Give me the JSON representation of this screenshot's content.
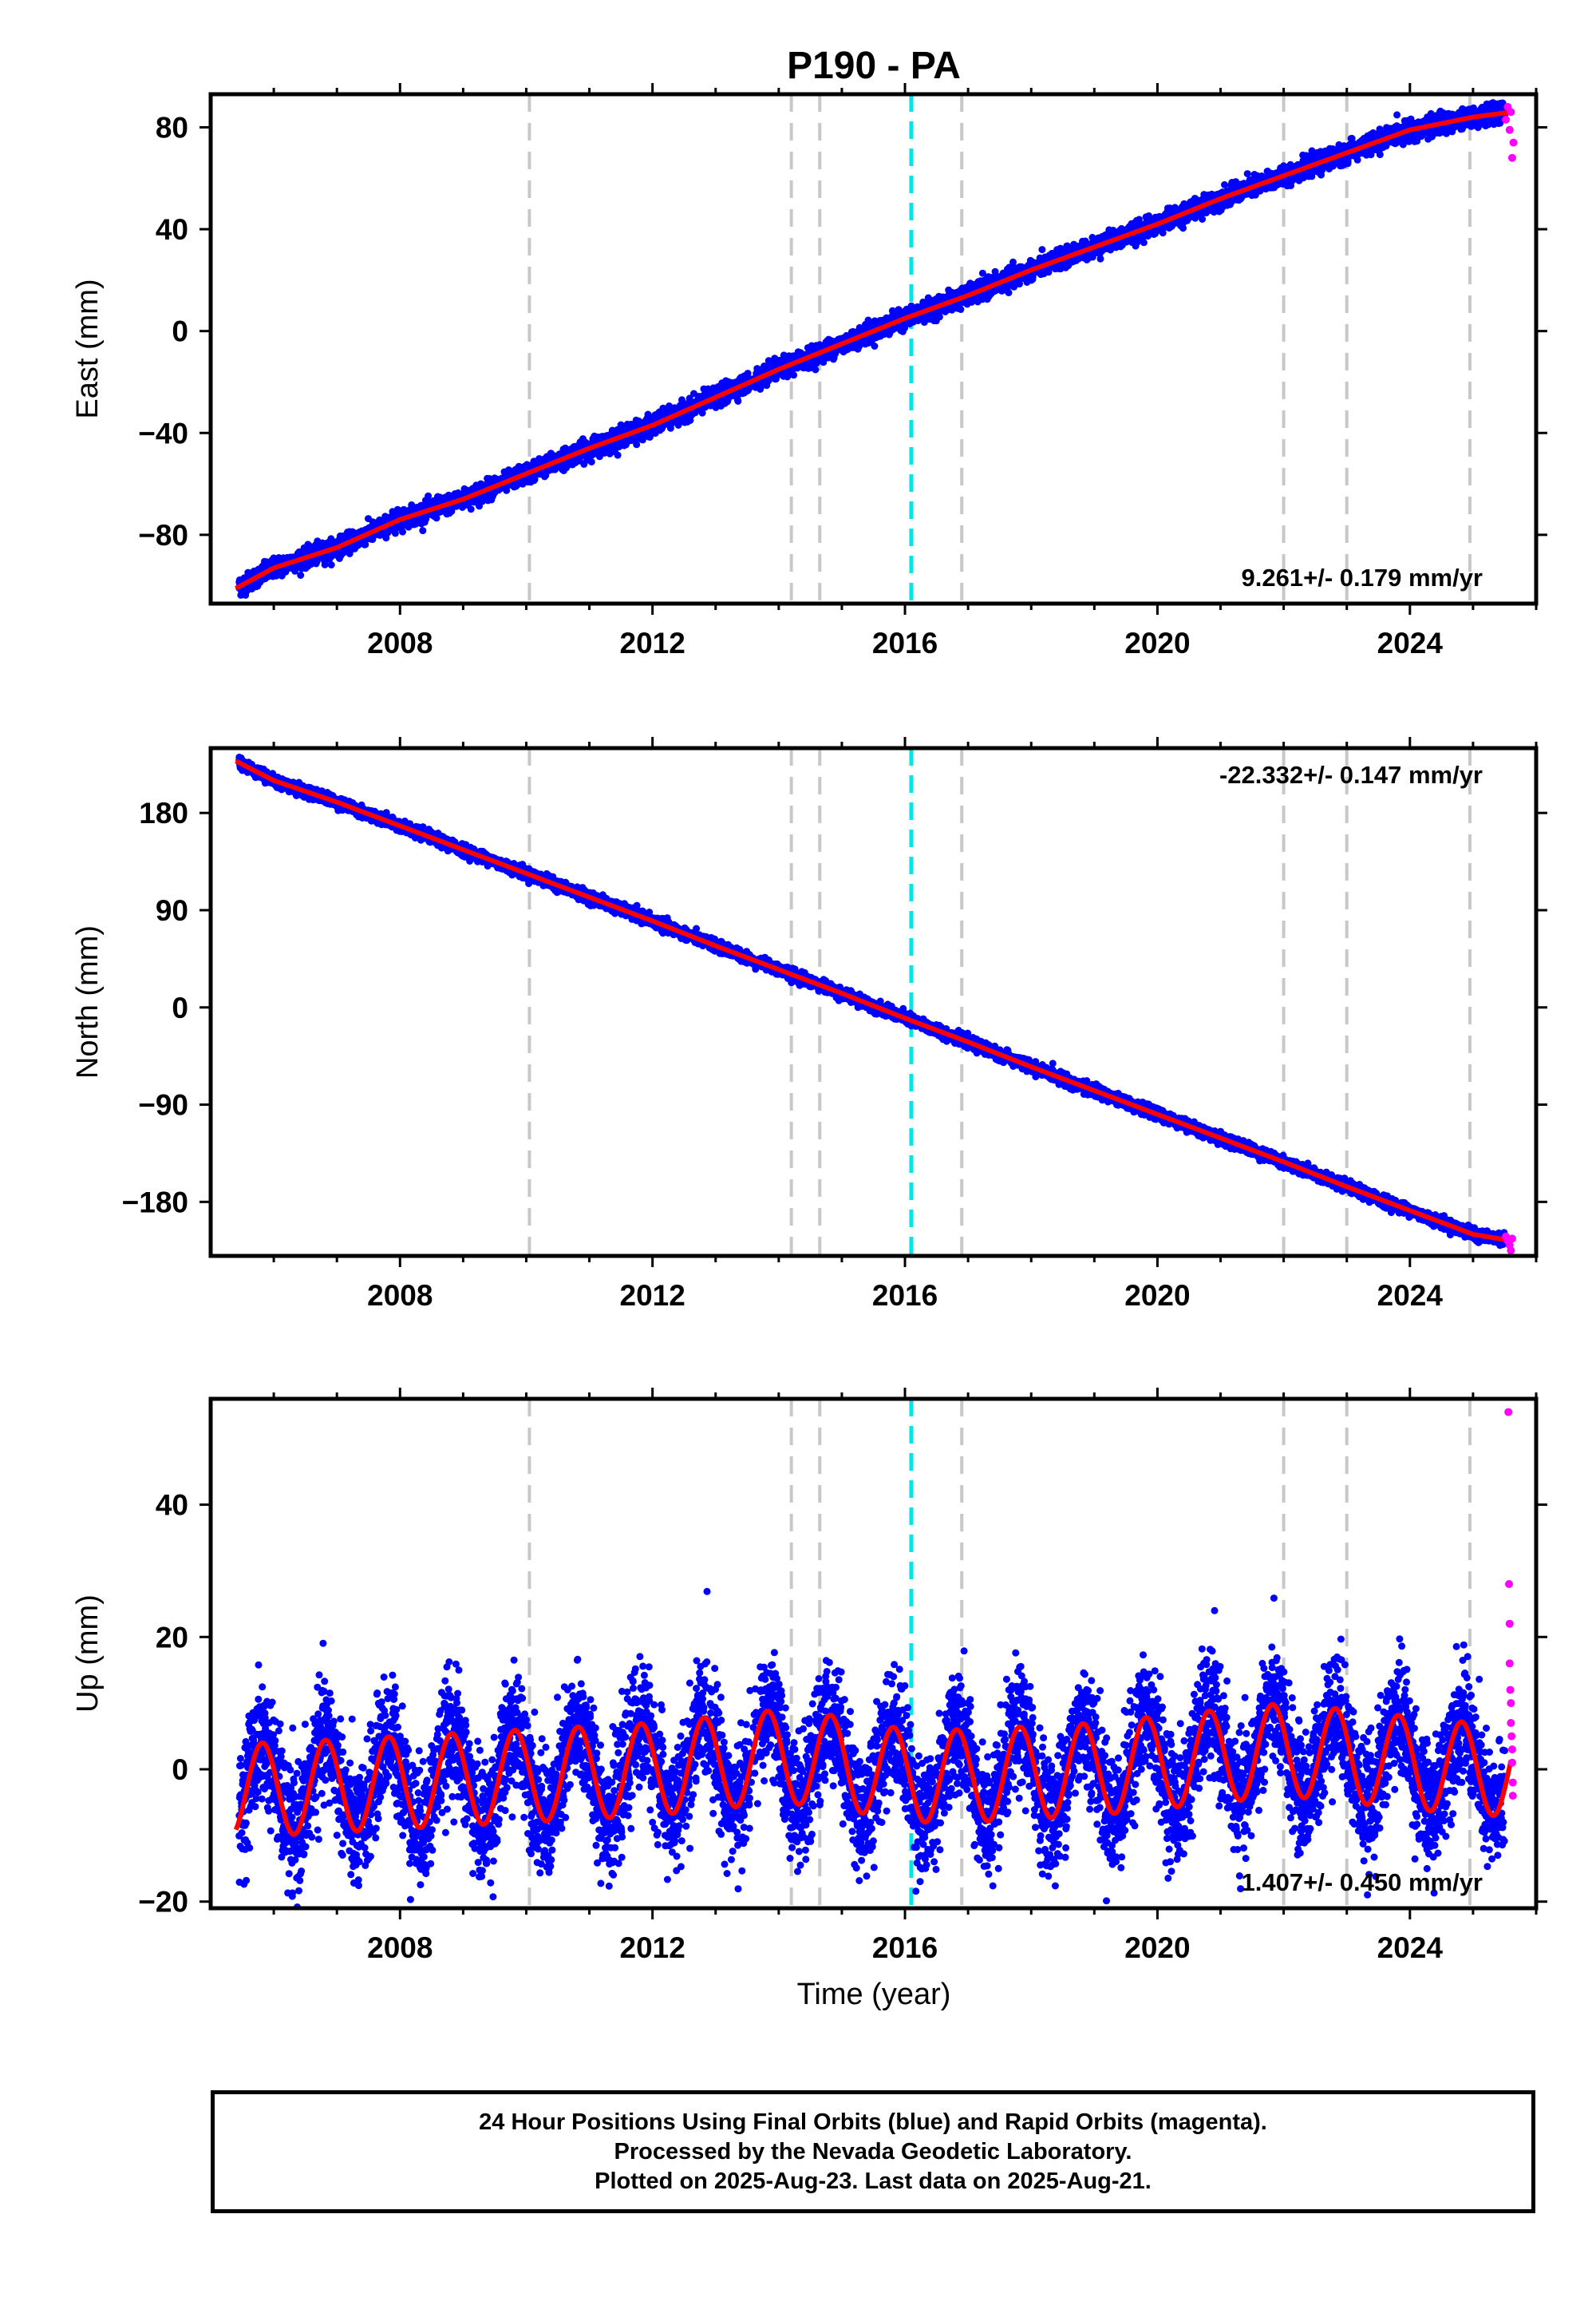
{
  "title": "P190 - PA",
  "xlabel": "Time (year)",
  "footer": {
    "line1": "24 Hour Positions Using Final Orbits (blue) and Rapid Orbits (magenta).",
    "line2": "Processed by the Nevada Geodetic Laboratory.",
    "line3": "Plotted on 2025-Aug-23. Last data on 2025-Aug-21."
  },
  "colors": {
    "final": "#0000ff",
    "rapid": "#ff00ff",
    "model": "#ff0000",
    "event": "#c8c8c8",
    "antenna": "#00e6e6"
  },
  "event_lines": [
    2010.05,
    2014.2,
    2014.65,
    2016.9,
    2022.0,
    2023.0,
    2024.95
  ],
  "antenna_line": 2016.1,
  "chart_data": [
    {
      "type": "scatter",
      "component": "east",
      "ylabel": "East (mm)",
      "xlim": [
        2005.0,
        2026.0
      ],
      "ylim": [
        -107,
        93
      ],
      "xticks": [
        2008,
        2012,
        2016,
        2020,
        2024
      ],
      "yticks": [
        -80,
        -40,
        0,
        40,
        80
      ],
      "rate_label": "9.261+/- 0.179 mm/yr",
      "rate_position": "bottom-right",
      "series": [
        {
          "role": "model",
          "x": [
            2005.4,
            2006.0,
            2007.0,
            2008.0,
            2009.0,
            2010.0,
            2011.0,
            2012.0,
            2013.0,
            2014.0,
            2015.0,
            2016.0,
            2017.0,
            2018.0,
            2019.0,
            2020.0,
            2021.0,
            2022.0,
            2023.0,
            2024.0,
            2025.0,
            2025.6
          ],
          "y": [
            -101,
            -93,
            -85,
            -74,
            -66,
            -56,
            -46,
            -37,
            -26,
            -15,
            -5,
            5,
            14,
            24,
            33,
            42,
            52,
            61,
            70,
            79,
            84,
            86
          ]
        },
        {
          "role": "final",
          "trend": {
            "x0": 2005.45,
            "y0": -96,
            "rate": 9.261,
            "start": 2005.45,
            "end": 2025.5
          },
          "scatter": 1.8
        },
        {
          "role": "rapid",
          "x": [
            2025.52,
            2025.55,
            2025.58,
            2025.6,
            2025.62,
            2025.64
          ],
          "y": [
            83,
            88,
            79,
            86,
            68,
            74
          ]
        }
      ]
    },
    {
      "type": "scatter",
      "component": "north",
      "ylabel": "North (mm)",
      "xlim": [
        2005.0,
        2026.0
      ],
      "ylim": [
        -230,
        240
      ],
      "xticks": [
        2008,
        2012,
        2016,
        2020,
        2024
      ],
      "yticks": [
        -180,
        -90,
        0,
        90,
        180
      ],
      "rate_label": "-22.332+/- 0.147 mm/yr",
      "rate_position": "top-right",
      "series": [
        {
          "role": "model",
          "x": [
            2005.4,
            2006.0,
            2007.0,
            2008.0,
            2009.0,
            2010.0,
            2011.0,
            2012.0,
            2013.0,
            2014.0,
            2015.0,
            2016.0,
            2017.0,
            2018.0,
            2019.0,
            2020.0,
            2021.0,
            2022.0,
            2023.0,
            2024.0,
            2025.0,
            2025.6
          ],
          "y": [
            228,
            210,
            190,
            168,
            146,
            124,
            102,
            80,
            57,
            35,
            13,
            -10,
            -32,
            -55,
            -77,
            -99,
            -121,
            -143,
            -166,
            -188,
            -210,
            -216
          ]
        },
        {
          "role": "final",
          "trend": {
            "x0": 2005.45,
            "y0": 220,
            "rate": -22.332,
            "start": 2005.45,
            "end": 2025.5
          },
          "scatter": 2.5
        },
        {
          "role": "rapid",
          "x": [
            2025.52,
            2025.55,
            2025.58,
            2025.6,
            2025.62
          ],
          "y": [
            -212,
            -216,
            -220,
            -225,
            -214
          ]
        }
      ]
    },
    {
      "type": "scatter",
      "component": "up",
      "ylabel": "Up (mm)",
      "xlim": [
        2005.0,
        2026.0
      ],
      "ylim": [
        -21,
        56
      ],
      "xticks": [
        2008,
        2012,
        2016,
        2020,
        2024
      ],
      "yticks": [
        -20,
        0,
        20,
        40
      ],
      "rate_label": "1.407+/- 0.450 mm/yr",
      "rate_position": "bottom-right",
      "series": [
        {
          "role": "model",
          "mean": [
            -3,
            -2.5,
            -2,
            -1.5,
            -1,
            -0.5,
            0,
            1,
            2,
            1,
            -1,
            -1,
            -0.5,
            0,
            1,
            2,
            3,
            2,
            1,
            0,
            0
          ],
          "mean_years": [
            2006,
            2007,
            2008,
            2009,
            2010,
            2011,
            2012,
            2013,
            2014,
            2015,
            2016,
            2017,
            2018,
            2019,
            2020,
            2021,
            2022,
            2023,
            2024,
            2025,
            2026
          ],
          "amplitude": 7,
          "phase_peak": 0.82,
          "start": 2005.4,
          "end": 2025.6
        },
        {
          "role": "final",
          "scatter": 4.5,
          "start": 2005.45,
          "end": 2025.5
        },
        {
          "role": "rapid",
          "x": [
            2025.56,
            2025.57,
            2025.58,
            2025.58,
            2025.59,
            2025.6,
            2025.6,
            2025.61,
            2025.62,
            2025.62,
            2025.63,
            2025.63
          ],
          "y": [
            54,
            28,
            22,
            16,
            12,
            10,
            7,
            5,
            3,
            1,
            -2,
            -4
          ]
        }
      ]
    }
  ]
}
